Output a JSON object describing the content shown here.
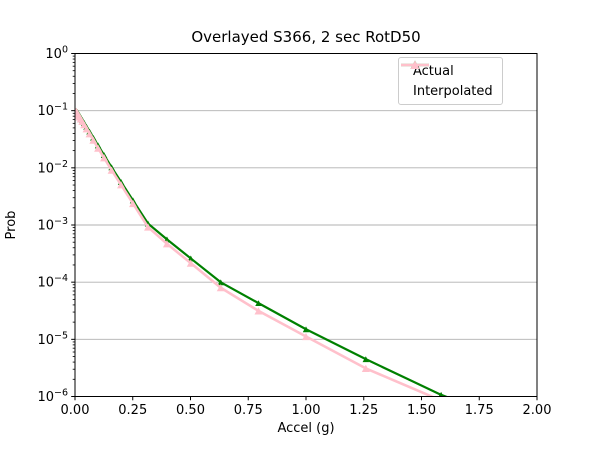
{
  "colors": {
    "background": "#ffffff",
    "grid": "#b0b0b0",
    "spine": "#000000",
    "text": "#000000",
    "actual": "#008000",
    "interpolated": "#ffc0cb",
    "legend_border": "#cccccc"
  },
  "chart_data": {
    "type": "line",
    "title": "Overlayed S366, 2 sec RotD50",
    "xlabel": "Accel (g)",
    "ylabel": "Prob",
    "xlim": [
      0.0,
      2.0
    ],
    "ylim": [
      1e-06,
      1.0
    ],
    "yscale": "log",
    "grid": "horizontal-major-decades",
    "legend_position": "upper-right",
    "x_ticks": [
      {
        "v": 0.0,
        "label": "0.00"
      },
      {
        "v": 0.25,
        "label": "0.25"
      },
      {
        "v": 0.5,
        "label": "0.50"
      },
      {
        "v": 0.75,
        "label": "0.75"
      },
      {
        "v": 1.0,
        "label": "1.00"
      },
      {
        "v": 1.25,
        "label": "1.25"
      },
      {
        "v": 1.5,
        "label": "1.50"
      },
      {
        "v": 1.75,
        "label": "1.75"
      },
      {
        "v": 2.0,
        "label": "2.00"
      }
    ],
    "y_ticks": [
      {
        "v": 1.0,
        "base": "10",
        "exp": "0"
      },
      {
        "v": 0.1,
        "base": "10",
        "exp": "−1"
      },
      {
        "v": 0.01,
        "base": "10",
        "exp": "−2"
      },
      {
        "v": 0.001,
        "base": "10",
        "exp": "−3"
      },
      {
        "v": 0.0001,
        "base": "10",
        "exp": "−4"
      },
      {
        "v": 1e-05,
        "base": "10",
        "exp": "−5"
      },
      {
        "v": 1e-06,
        "base": "10",
        "exp": "−6"
      }
    ],
    "series": [
      {
        "name": "Actual",
        "color": "#008000",
        "marker": "triangle-up",
        "line_width": 2.2,
        "marker_size": 6.5,
        "x": [
          0.00501,
          0.00631,
          0.00794,
          0.01,
          0.0126,
          0.0158,
          0.02,
          0.0251,
          0.0316,
          0.0398,
          0.0501,
          0.0631,
          0.0794,
          0.1,
          0.1259,
          0.1585,
          0.1995,
          0.2512,
          0.3162,
          0.3981,
          0.5012,
          0.631,
          0.7943,
          1.0,
          1.2589,
          1.5849,
          1.9953
        ],
        "y": [
          0.0995,
          0.098,
          0.0965,
          0.095,
          0.092,
          0.0875,
          0.082,
          0.076,
          0.069,
          0.061,
          0.052,
          0.043,
          0.0336,
          0.0246,
          0.0167,
          0.0102,
          0.00566,
          0.00269,
          0.00106,
          0.00056,
          0.00026,
          9.95e-05,
          4.3e-05,
          1.5e-05,
          4.5e-06,
          1.07e-06,
          2.5e-07
        ]
      },
      {
        "name": "Interpolated",
        "color": "#ffc0cb",
        "marker": "triangle-up",
        "line_width": 2.6,
        "marker_size": 8,
        "x": [
          0.00501,
          0.00631,
          0.00794,
          0.01,
          0.0126,
          0.0158,
          0.02,
          0.0251,
          0.0316,
          0.0398,
          0.0501,
          0.0631,
          0.0794,
          0.1,
          0.1259,
          0.1585,
          0.1995,
          0.2512,
          0.3162,
          0.3981,
          0.5012,
          0.631,
          0.7943,
          1.0,
          1.2589,
          1.5849,
          1.9953
        ],
        "y": [
          0.0975,
          0.0957,
          0.0938,
          0.091,
          0.0878,
          0.0832,
          0.0778,
          0.0718,
          0.0648,
          0.0568,
          0.0482,
          0.0395,
          0.0305,
          0.0221,
          0.015,
          0.0091,
          0.00505,
          0.00237,
          0.00092,
          0.00047,
          0.000215,
          8e-05,
          3.15e-05,
          1.12e-05,
          3.1e-06,
          8.5e-07,
          1.8e-07
        ]
      }
    ]
  }
}
